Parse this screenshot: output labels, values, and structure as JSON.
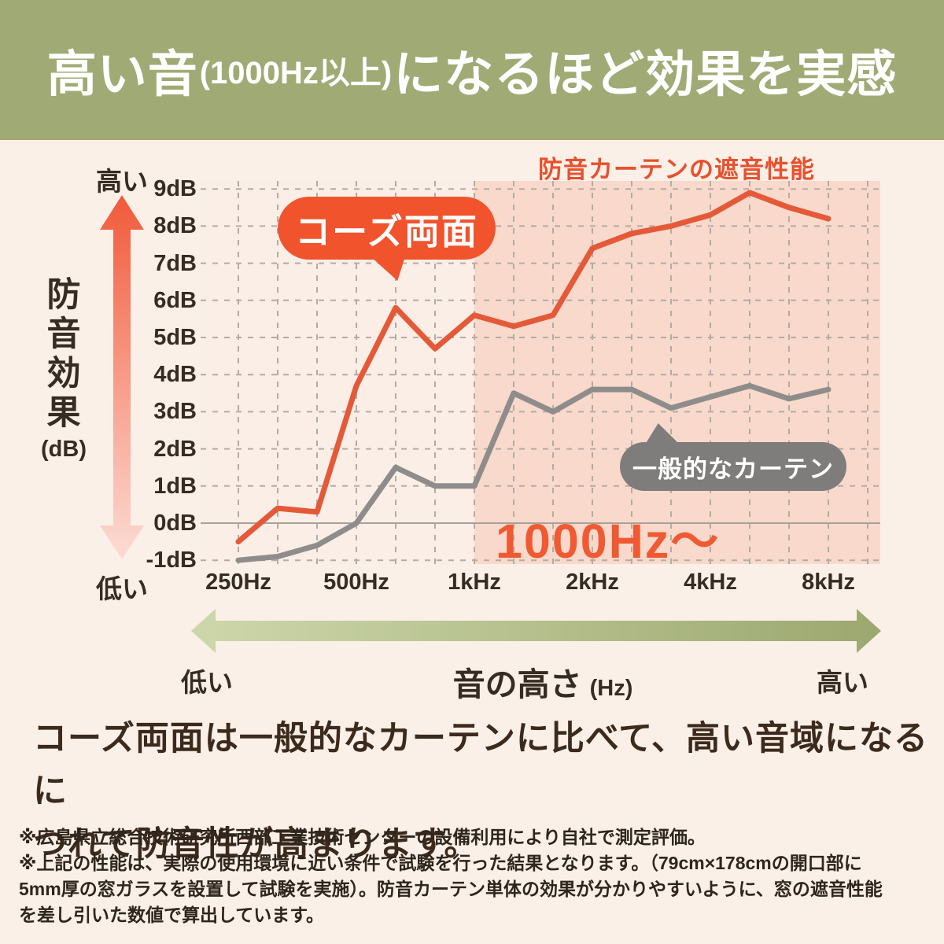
{
  "header": {
    "title_parts": [
      "高い音",
      "(1000Hz以上)",
      "になるほど効果を実感"
    ]
  },
  "chart": {
    "title": "防音カーテンの遮音性能",
    "highlight_label": "1000Hz〜",
    "series_labels": {
      "product": "コーズ両面",
      "generic": "一般的なカーテン"
    },
    "y_axis": {
      "title_chars": [
        "防",
        "音",
        "効",
        "果"
      ],
      "unit": "(dB)",
      "top_label": "高い",
      "bottom_label": "低い",
      "tick_labels": [
        "9dB",
        "8dB",
        "7dB",
        "6dB",
        "5dB",
        "4dB",
        "3dB",
        "2dB",
        "1dB",
        "0dB",
        "-1dB"
      ]
    },
    "x_axis": {
      "major_labels": [
        "250Hz",
        "500Hz",
        "1kHz",
        "2kHz",
        "4kHz",
        "8kHz"
      ],
      "title": "音の高さ",
      "unit": "(Hz)",
      "left_label": "低い",
      "right_label": "高い"
    }
  },
  "chart_data": {
    "type": "line",
    "x_bands_hz": [
      250,
      315,
      400,
      500,
      630,
      800,
      1000,
      1250,
      1600,
      2000,
      2500,
      3150,
      4000,
      5000,
      6300,
      8000
    ],
    "x_major_tick_indexes": [
      0,
      3,
      6,
      9,
      12,
      15
    ],
    "series": [
      {
        "name": "コーズ両面",
        "color": "#e45a38",
        "values": [
          -0.5,
          0.4,
          0.3,
          3.7,
          5.8,
          4.7,
          5.6,
          5.3,
          5.6,
          7.4,
          7.8,
          8.0,
          8.3,
          8.9,
          8.5,
          8.2
        ]
      },
      {
        "name": "一般的なカーテン",
        "color": "#8e8d8b",
        "values": [
          -1.0,
          -0.9,
          -0.6,
          0.0,
          1.5,
          1.0,
          1.0,
          3.5,
          3.0,
          3.6,
          3.6,
          3.1,
          3.4,
          3.7,
          3.35,
          3.6
        ]
      }
    ],
    "ylim": [
      -1,
      9
    ],
    "y_unit": "dB",
    "highlight_region_from_hz": 1000,
    "grid": true,
    "legend_position": "bubbles-on-plot"
  },
  "body": {
    "lines": [
      "コーズ両面は一般的なカーテンに比べて、高い音域になるに",
      "つれて防音性が高まります。"
    ]
  },
  "footnotes": {
    "lines": [
      "※広島県立総合技術研究所西部工業技術センターの設備利用により自社で測定評価。",
      "※上記の性能は、実際の使用環境に近い条件で試験を行った結果となります。（79cm×178cmの開口部に",
      "5mm厚の窓ガラスを設置して試験を実施）。防音カーテン単体の効果が分かりやすいように、窓の遮音性能",
      "を差し引いた数値で算出しています。"
    ]
  },
  "colors": {
    "page_bg": "#faf0e8",
    "header_bg": "#a0aa75",
    "accent_orange": "#e8512e",
    "product_line": "#e45a38",
    "generic_line": "#8e8d8b",
    "product_bubble": "#f1532d",
    "generic_bubble": "#7e7d7b",
    "highlight_region": "#f8d9cb",
    "plot_bg": "#fbeee7",
    "grid_line": "#b3aca4",
    "text_dark": "#362c22"
  }
}
